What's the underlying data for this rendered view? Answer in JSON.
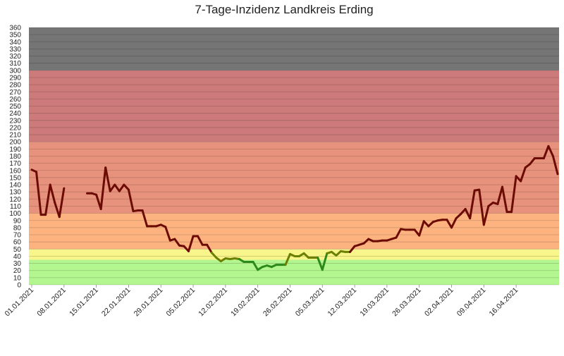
{
  "chart_data": {
    "type": "line",
    "title": "7-Tage-Inzidenz Landkreis Erding",
    "xlabel": "",
    "ylabel": "",
    "ylim": [
      0,
      360
    ],
    "ytick_step": 10,
    "grid": true,
    "legend": "none",
    "x_start": "01.01.2021",
    "x_end": "21.04.2021",
    "xtick_labels": [
      "01.01.2021",
      "08.01.2021",
      "15.01.2021",
      "22.01.2021",
      "29.01.2021",
      "05.02.2021",
      "12.02.2021",
      "19.02.2021",
      "26.02.2021",
      "05.03.2021",
      "12.03.2021",
      "19.03.2021",
      "26.03.2021",
      "02.04.2021",
      "09.04.2021",
      "16.04.2021"
    ],
    "bands": [
      {
        "from": 0,
        "to": 35,
        "color": "#b3f58f"
      },
      {
        "from": 35,
        "to": 50,
        "color": "#f8f58b"
      },
      {
        "from": 50,
        "to": 100,
        "color": "#fcb380"
      },
      {
        "from": 100,
        "to": 200,
        "color": "#e7927c"
      },
      {
        "from": 200,
        "to": 300,
        "color": "#cc7a7a"
      },
      {
        "from": 300,
        "to": 360,
        "color": "#757575"
      }
    ],
    "line_colors": {
      "above_50": "#6b0b04",
      "between_35_50": "#6b7f00",
      "below_35": "#2d8a1a"
    },
    "series": [
      {
        "values": [
          161,
          158,
          98,
          98,
          140,
          115,
          95,
          135,
          null,
          null,
          null,
          null,
          128,
          128,
          126,
          106,
          164,
          131,
          140,
          131,
          140,
          133,
          103,
          104,
          104,
          82,
          82,
          82,
          84,
          81,
          62,
          64,
          55,
          54,
          47,
          68,
          68,
          56,
          56,
          45,
          38,
          33,
          37,
          36,
          37,
          36,
          32,
          32,
          32,
          21,
          25,
          27,
          25,
          28,
          28,
          28,
          43,
          40,
          40,
          44,
          38,
          38,
          38,
          21,
          44,
          46,
          41,
          47,
          46,
          46,
          54,
          56,
          58,
          64,
          61,
          61,
          62,
          62,
          64,
          66,
          78,
          77,
          77,
          77,
          69,
          89,
          82,
          88,
          90,
          91,
          91,
          80,
          93,
          99,
          106,
          93,
          132,
          133,
          84,
          110,
          115,
          113,
          137,
          102,
          102,
          152,
          145,
          164,
          169,
          177,
          177,
          177,
          194,
          180,
          155
        ]
      }
    ]
  }
}
